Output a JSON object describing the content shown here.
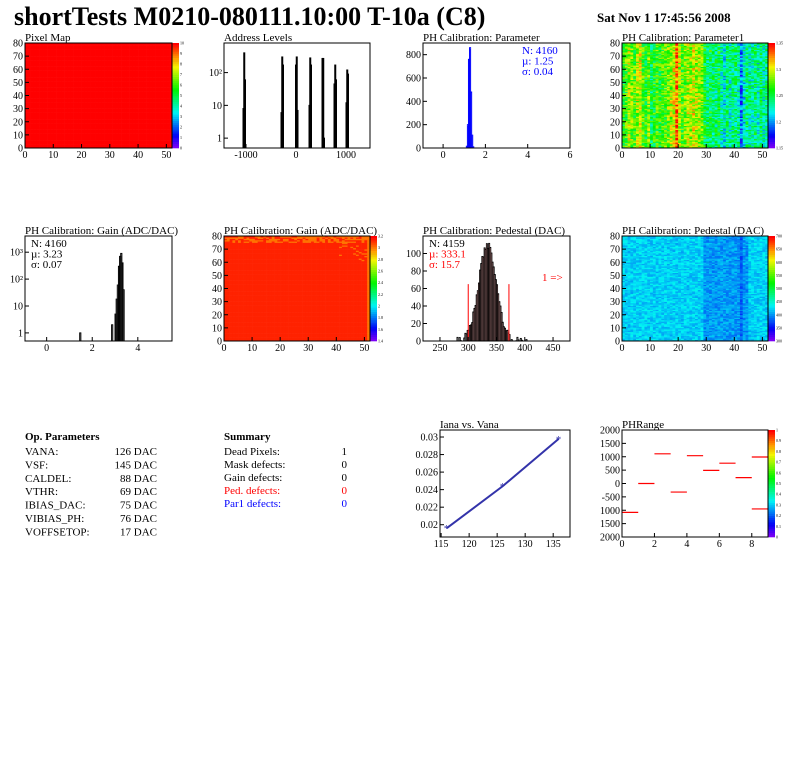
{
  "header": {
    "title": "shortTests M0210-080111.10:00 T-10a (C8)",
    "date": "Sat Nov  1 17:45:56 2008"
  },
  "colors": {
    "red": "#ff0000",
    "blue": "#0000ff",
    "navy": "#3333aa",
    "black": "#000000"
  },
  "chart_data": [
    {
      "id": "pixelmap",
      "type": "heatmap",
      "title": "Pixel Map",
      "xlim": [
        0,
        52
      ],
      "ylim": [
        0,
        80
      ],
      "xticks": [
        "0",
        "10",
        "20",
        "30",
        "40",
        "50"
      ],
      "yticks": [
        "0",
        "10",
        "20",
        "30",
        "40",
        "50",
        "60",
        "70",
        "80"
      ],
      "zlim": [
        0,
        10
      ],
      "zticks": [
        "0",
        "1",
        "2",
        "3",
        "4",
        "5",
        "6",
        "7",
        "8",
        "9",
        "10"
      ],
      "uniform_value": 10,
      "note": "all pixels at maximum"
    },
    {
      "id": "address",
      "type": "bar",
      "title": "Address Levels",
      "xlim": [
        -1440,
        1480
      ],
      "ylog": true,
      "ylim": [
        0.5,
        800
      ],
      "xticks": [
        "-1000",
        "0",
        "1000"
      ],
      "yticks": [
        "1",
        "10",
        "10²"
      ],
      "bins": [
        [
          -1060,
          8
        ],
        [
          -1045,
          400
        ],
        [
          -1030,
          60
        ],
        [
          -300,
          6
        ],
        [
          -285,
          300
        ],
        [
          -270,
          170
        ],
        [
          -10,
          170
        ],
        [
          5,
          300
        ],
        [
          20,
          7
        ],
        [
          260,
          10
        ],
        [
          275,
          280
        ],
        [
          290,
          170
        ],
        [
          520,
          270
        ],
        [
          535,
          270
        ],
        [
          550,
          1
        ],
        [
          760,
          45
        ],
        [
          775,
          170
        ],
        [
          790,
          60
        ],
        [
          1000,
          12
        ],
        [
          1015,
          120
        ],
        [
          1030,
          90
        ]
      ]
    },
    {
      "id": "ph_param",
      "type": "bar",
      "title": "PH Calibration: Parameter",
      "xlim": [
        -0.95,
        6
      ],
      "ylim": [
        0,
        900
      ],
      "xticks": [
        "0",
        "2",
        "4",
        "6"
      ],
      "yticks": [
        "0",
        "200",
        "400",
        "600",
        "800"
      ],
      "bins": [
        [
          1.1,
          15
        ],
        [
          1.15,
          200
        ],
        [
          1.2,
          760
        ],
        [
          1.25,
          860
        ],
        [
          1.3,
          480
        ],
        [
          1.35,
          110
        ],
        [
          1.4,
          10
        ]
      ],
      "stats": {
        "n": "N: 4160",
        "mu": "µ: 1.25",
        "sigma": "σ: 0.04"
      }
    },
    {
      "id": "ph_param1",
      "type": "heatmap",
      "title": "PH Calibration: Parameter1",
      "xlim": [
        0,
        52
      ],
      "ylim": [
        0,
        80
      ],
      "xticks": [
        "0",
        "10",
        "20",
        "30",
        "40",
        "50"
      ],
      "yticks": [
        "0",
        "10",
        "20",
        "30",
        "40",
        "50",
        "60",
        "70",
        "80"
      ],
      "zlim": [
        1.13,
        1.38
      ],
      "zticks": [
        "1.15",
        "1.2",
        "1.25",
        "1.3",
        "1.35"
      ]
    },
    {
      "id": "gain_hist",
      "type": "bar",
      "title": "PH Calibration: Gain (ADC/DAC)",
      "xlim": [
        -0.95,
        5.5
      ],
      "ylog": true,
      "ylim": [
        0.5,
        4000
      ],
      "xticks": [
        "0",
        "2",
        "4"
      ],
      "yticks": [
        "1",
        "10",
        "10²",
        "10³"
      ],
      "bins": [
        [
          1.45,
          1
        ],
        [
          2.85,
          2
        ],
        [
          3.0,
          5
        ],
        [
          3.05,
          18
        ],
        [
          3.1,
          60
        ],
        [
          3.15,
          300
        ],
        [
          3.2,
          700
        ],
        [
          3.25,
          900
        ],
        [
          3.3,
          400
        ],
        [
          3.35,
          40
        ]
      ],
      "stats": {
        "n": "N: 4160",
        "mu": "µ: 3.23",
        "sigma": "σ: 0.07"
      }
    },
    {
      "id": "gain_map",
      "type": "heatmap",
      "title": "PH Calibration: Gain (ADC/DAC)",
      "xlim": [
        0,
        52
      ],
      "ylim": [
        0,
        80
      ],
      "xticks": [
        "0",
        "10",
        "20",
        "30",
        "40",
        "50"
      ],
      "yticks": [
        "0",
        "10",
        "20",
        "30",
        "40",
        "50",
        "60",
        "70",
        "80"
      ],
      "zlim": [
        1.4,
        3.3
      ],
      "zticks": [
        "1.4",
        "1.6",
        "1.8",
        "2",
        "2.2",
        "2.4",
        "2.6",
        "2.8",
        "3",
        "3.2"
      ]
    },
    {
      "id": "ped_hist",
      "type": "bar",
      "title": "PH Calibration: Pedestal (DAC)",
      "xlim": [
        220,
        480
      ],
      "ylim": [
        0,
        120
      ],
      "xticks": [
        "250",
        "300",
        "350",
        "400",
        "450"
      ],
      "yticks": [
        "0",
        "20",
        "40",
        "60",
        "80",
        "100"
      ],
      "mean": 333.1,
      "sigma": 15.7,
      "cut_low": 300,
      "cut_high": 372,
      "stats": {
        "n": "N: 4159",
        "mu": "µ: 333.1",
        "sigma": "σ: 15.7"
      },
      "overflow_label": "1 =>"
    },
    {
      "id": "ped_map",
      "type": "heatmap",
      "title": "PH Calibration: Pedestal (DAC)",
      "xlim": [
        0,
        52
      ],
      "ylim": [
        0,
        80
      ],
      "xticks": [
        "0",
        "10",
        "20",
        "30",
        "40",
        "50"
      ],
      "yticks": [
        "0",
        "10",
        "20",
        "30",
        "40",
        "50",
        "60",
        "70",
        "80"
      ],
      "zlim": [
        280,
        700
      ],
      "zticks": [
        "300",
        "350",
        "400",
        "450",
        "500",
        "550",
        "600",
        "650",
        "700"
      ]
    },
    {
      "id": "iana",
      "type": "line",
      "title": "Iana vs. Vana",
      "xlim": [
        114.8,
        138
      ],
      "ylim": [
        0.0186,
        0.0308
      ],
      "xticks": [
        "115",
        "120",
        "125",
        "130",
        "135"
      ],
      "yticks": [
        "0.02",
        "0.022",
        "0.024",
        "0.026",
        "0.028",
        "0.03"
      ],
      "x": [
        116,
        126,
        136
      ],
      "y": [
        0.0196,
        0.0244,
        0.0298
      ]
    },
    {
      "id": "phrange",
      "type": "heatmap",
      "title": "PHRange",
      "xlim": [
        0,
        9
      ],
      "ylim": [
        -2000,
        2000
      ],
      "xticks": [
        "0",
        "2",
        "4",
        "6",
        "8"
      ],
      "yticks": [
        "2000",
        "1500",
        "1000",
        "500",
        "0",
        "-500",
        "1000",
        "1500",
        "2000"
      ],
      "zticks": [
        "0",
        "0.1",
        "0.2",
        "0.3",
        "0.4",
        "0.5",
        "0.6",
        "0.7",
        "0.8",
        "0.9",
        "1"
      ],
      "segments": [
        [
          0,
          -1080
        ],
        [
          1,
          0
        ],
        [
          2,
          1110
        ],
        [
          3,
          -320
        ],
        [
          4,
          1040
        ],
        [
          5,
          490
        ],
        [
          6,
          760
        ],
        [
          7,
          220
        ],
        [
          8,
          990
        ],
        [
          8,
          -950
        ]
      ]
    }
  ],
  "op_params": {
    "title": "Op. Parameters",
    "rows": [
      {
        "name": "VANA:",
        "value": "126 DAC"
      },
      {
        "name": "VSF:",
        "value": "145 DAC"
      },
      {
        "name": "CALDEL:",
        "value": "88 DAC"
      },
      {
        "name": "VTHR:",
        "value": "69 DAC"
      },
      {
        "name": "IBIAS_DAC:",
        "value": "75 DAC"
      },
      {
        "name": "VIBIAS_PH:",
        "value": "76 DAC"
      },
      {
        "name": "VOFFSETOP:",
        "value": "17 DAC"
      }
    ]
  },
  "summary": {
    "title": "Summary",
    "rows": [
      {
        "name": "Dead Pixels:",
        "value": "1",
        "color": "#000000"
      },
      {
        "name": "Mask defects:",
        "value": "0",
        "color": "#000000"
      },
      {
        "name": "Gain defects:",
        "value": "0",
        "color": "#000000"
      },
      {
        "name": "Ped. defects:",
        "value": "0",
        "color": "#ff0000"
      },
      {
        "name": "Par1 defects:",
        "value": "0",
        "color": "#0000ff"
      }
    ]
  }
}
